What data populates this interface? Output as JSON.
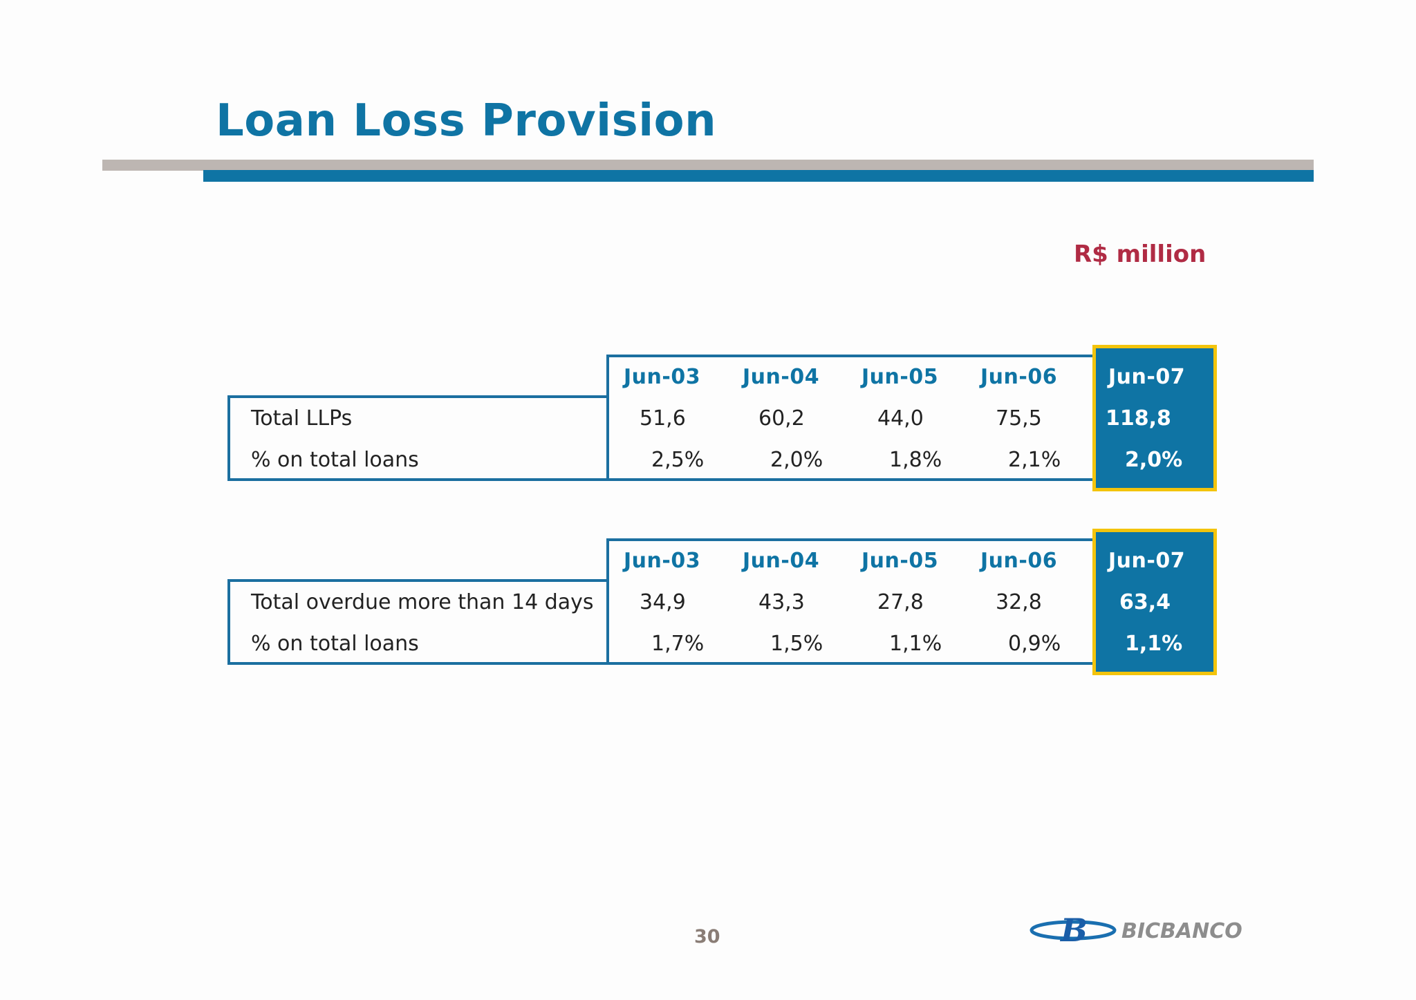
{
  "header": {
    "title": "Loan Loss Provision"
  },
  "unit_label": "R$ million",
  "tables": [
    {
      "columns": [
        "Jun-03",
        "Jun-04",
        "Jun-05",
        "Jun-06",
        "Jun-07"
      ],
      "rows": [
        {
          "label": "Total LLPs",
          "values": [
            "51,6",
            "60,2",
            "44,0",
            "75,5",
            "118,8"
          ]
        },
        {
          "label": "% on total loans",
          "values": [
            "2,5%",
            "2,0%",
            "1,8%",
            "2,1%",
            "2,0%"
          ]
        }
      ]
    },
    {
      "columns": [
        "Jun-03",
        "Jun-04",
        "Jun-05",
        "Jun-06",
        "Jun-07"
      ],
      "rows": [
        {
          "label": "Total overdue more than 14 days",
          "values": [
            "34,9",
            "43,3",
            "27,8",
            "32,8",
            "63,4"
          ]
        },
        {
          "label": "% on total loans",
          "values": [
            "1,7%",
            "1,5%",
            "1,1%",
            "0,9%",
            "1,1%"
          ]
        }
      ]
    }
  ],
  "footer": {
    "page_number": "30",
    "logo_text": "BICBANCO"
  },
  "colors": {
    "brand_blue": "#0f74a4",
    "accent_red": "#b02b44",
    "highlight_yellow": "#f3c40c"
  }
}
